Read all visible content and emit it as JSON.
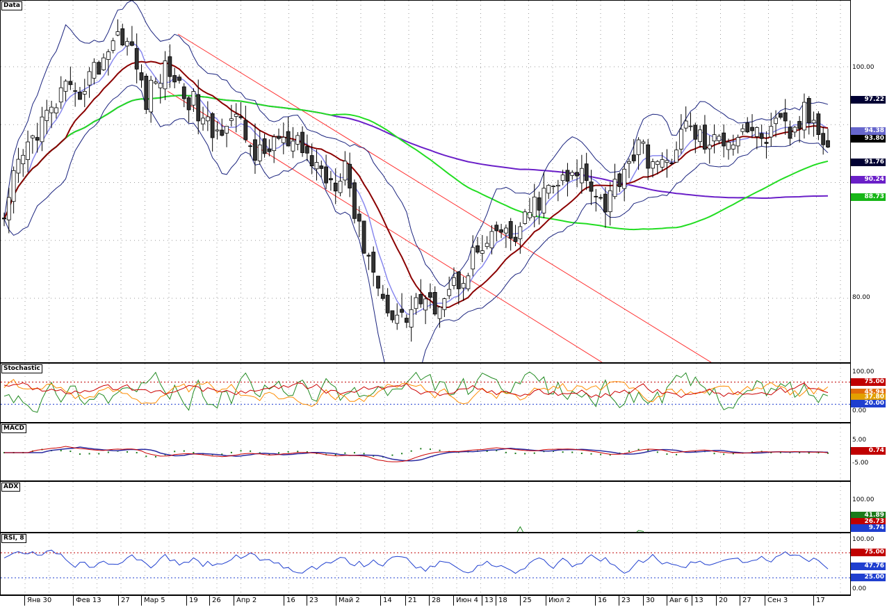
{
  "panels": {
    "price": {
      "title": "Data"
    },
    "stochastic": {
      "title": "Stochastic"
    },
    "macd": {
      "title": "MACD"
    },
    "adx": {
      "title": "ADX"
    },
    "rsi": {
      "title": "RSI, 8"
    }
  },
  "price_axis": [
    "100.00",
    "80.00"
  ],
  "price_tags": [
    {
      "label": "97.22",
      "color": "#000033"
    },
    {
      "label": "94.38",
      "color": "#6666cc"
    },
    {
      "label": "93.80",
      "color": "#000000"
    },
    {
      "label": "91.76",
      "color": "#000033"
    },
    {
      "label": "90.24",
      "color": "#6a1fc8"
    },
    {
      "label": "88.73",
      "color": "#17b617"
    }
  ],
  "stoch_axis": [
    "100.00",
    "0.00"
  ],
  "stoch_tags": [
    {
      "label": "75.00",
      "color": "#c00000"
    },
    {
      "label": "45.94",
      "color": "#e26b0a"
    },
    {
      "label": "37.80",
      "color": "#e2a000"
    },
    {
      "label": "20.00",
      "color": "#1f3fcf"
    }
  ],
  "macd_axis": [
    "5.00",
    "-5.00"
  ],
  "macd_tags": [
    {
      "label": "0.74",
      "color": "#c00000"
    }
  ],
  "adx_axis": [
    "100.00"
  ],
  "adx_tags": [
    {
      "label": "41.89",
      "color": "#1a7a1a"
    },
    {
      "label": "26.73",
      "color": "#c00000"
    },
    {
      "label": "9.74",
      "color": "#1f3fcf"
    }
  ],
  "rsi_axis": [
    "100.00",
    "0.00"
  ],
  "rsi_tags": [
    {
      "label": "75.00",
      "color": "#c00000"
    },
    {
      "label": "47.76",
      "color": "#1f3fcf"
    },
    {
      "label": "25.00",
      "color": "#1f3fcf"
    }
  ],
  "x_labels": [
    "Янв 30",
    "Фев 13",
    "27",
    "Мар 5",
    "19",
    "26",
    "Апр 2",
    "16",
    "23",
    "Май 2",
    "14",
    "21",
    "28",
    "Июн 4",
    "13",
    "18",
    "25",
    "Июл 2",
    "16",
    "23",
    "30",
    "Авг 6",
    "13",
    "20",
    "27",
    "Сен 3",
    "17"
  ],
  "chart_data": {
    "type": "candlestick",
    "ylim": [
      74,
      105
    ],
    "ma_fast_last": 94.38,
    "ma_slow_last": 93.8,
    "ma_long1_last": 90.24,
    "ma_long2_last": 88.73,
    "bollinger_upper_last": 97.22,
    "bollinger_lower_last": 91.76,
    "stochastic_levels": [
      75,
      20
    ],
    "stochastic_last": [
      45.94,
      37.8
    ],
    "macd_last": 0.74,
    "adx_last": [
      41.89,
      26.73,
      9.74
    ],
    "rsi_levels": [
      75,
      25
    ],
    "rsi_last": 47.76,
    "close_path": [
      86,
      91,
      93,
      95,
      96,
      98,
      97,
      99,
      100,
      102,
      103,
      101,
      97,
      99,
      100,
      98,
      97,
      95,
      94,
      96,
      95,
      93,
      92,
      94,
      93,
      93,
      92,
      91,
      90,
      92,
      86,
      84,
      80,
      79,
      78,
      80,
      79,
      80,
      81,
      82,
      84,
      84,
      86,
      85,
      86,
      88,
      89,
      90,
      90,
      91,
      90,
      88,
      90,
      92,
      93,
      92,
      91,
      93,
      95,
      94,
      93,
      94,
      94,
      95,
      94,
      94,
      95,
      94,
      96,
      95,
      93.8
    ]
  }
}
